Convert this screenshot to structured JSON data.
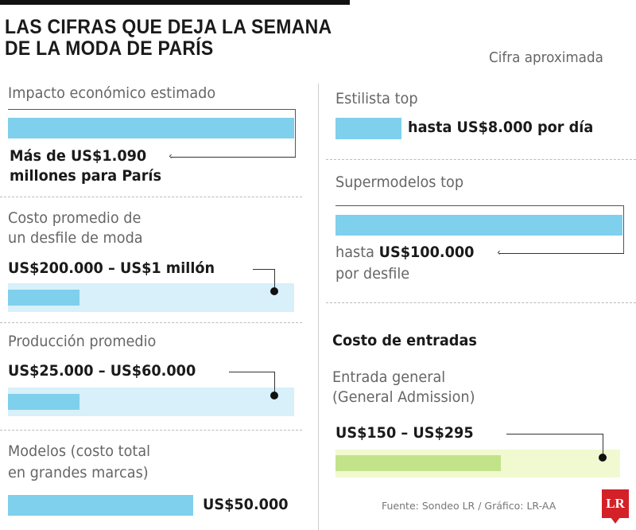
{
  "header": {
    "title_line1": "LAS CIFRAS QUE DEJA LA SEMANA",
    "title_line2": "DE LA MODA DE PARÍS",
    "note": "Cifra aproximada"
  },
  "chart_data": {
    "type": "bar",
    "title": "LAS CIFRAS QUE DEJA LA SEMANA DE LA MODA DE PARÍS",
    "items": [
      {
        "label": "Impacto económico estimado",
        "value_line1": "Más de US$1.090",
        "value_line2": "millones para París",
        "color": "#7fd0ec"
      },
      {
        "label_line1": "Costo promedio de",
        "label_line2": "un desfile de moda",
        "value": "US$200.000 – US$1 millón",
        "range_usd": [
          200000,
          1000000
        ],
        "color": "#7fd0ec"
      },
      {
        "label": "Producción promedio",
        "value": "US$25.000 – US$60.000",
        "range_usd": [
          25000,
          60000
        ],
        "color": "#7fd0ec"
      },
      {
        "label_line1": "Modelos (costo total",
        "label_line2": "en grandes marcas)",
        "value": "US$50.000",
        "value_usd": 50000,
        "color": "#7fd0ec"
      },
      {
        "label": "Estilista top",
        "value": "hasta US$8.000 por día",
        "value_usd": 8000,
        "color": "#7fd0ec"
      },
      {
        "label": "Supermodelos top",
        "value_prefix": "hasta",
        "value": "US$100.000",
        "value_suffix": "por desfile",
        "value_usd": 100000,
        "color": "#7fd0ec"
      }
    ],
    "section2": {
      "heading": "Costo de entradas",
      "label_line1": "Entrada general",
      "label_line2": "(General Admission)",
      "value": "US$150 – US$295",
      "range_usd": [
        150,
        295
      ],
      "color": "#c3e38a"
    }
  },
  "footer": {
    "source": "Fuente: Sondeo LR / Gráfico: LR-AA",
    "logo": "LR",
    "logo_color": "#d42027"
  }
}
